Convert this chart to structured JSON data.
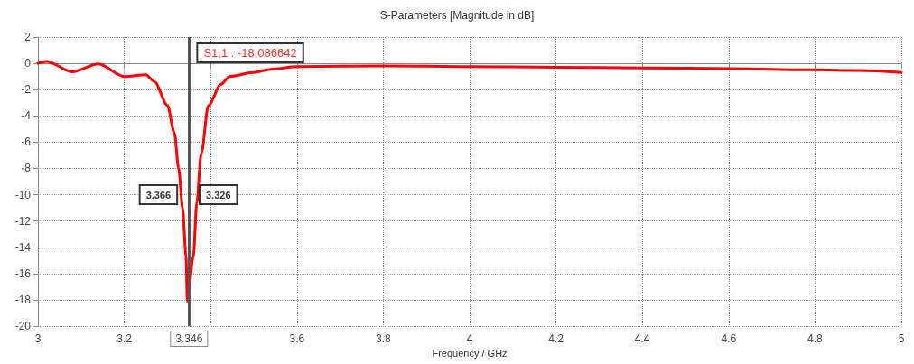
{
  "chart_data": {
    "type": "line",
    "title": "S-Parameters [Magnitude in dB]",
    "xlabel": "Frequency / GHz",
    "x": [
      3.0,
      3.02,
      3.08,
      3.14,
      3.2,
      3.25,
      3.27,
      3.3,
      3.316,
      3.326,
      3.335,
      3.343,
      3.346,
      3.36,
      3.368,
      3.378,
      3.395,
      3.424,
      3.444,
      3.498,
      3.54,
      3.6,
      3.8,
      4.0,
      4.2,
      4.4,
      4.6,
      4.8,
      4.9,
      5.0
    ],
    "series": [
      {
        "color": "#ff0000",
        "values": [
          0,
          0.15,
          -0.65,
          -0.05,
          -1.0,
          -0.87,
          -1.4,
          -3.2,
          -5.3,
          -8.0,
          -11.0,
          -14.7,
          -18.09,
          -14.7,
          -10.6,
          -6.9,
          -3.2,
          -1.6,
          -1.0,
          -0.7,
          -0.45,
          -0.25,
          -0.2,
          -0.25,
          -0.3,
          -0.35,
          -0.4,
          -0.5,
          -0.55,
          -0.7
        ]
      }
    ],
    "xlim": [
      3,
      5
    ],
    "xticks": [
      3,
      3.2,
      {
        "value": 3.4,
        "label": null
      },
      3.6,
      3.8,
      4,
      4.2,
      4.4,
      4.6,
      4.8,
      5
    ],
    "ylim": [
      -20,
      2
    ],
    "yticks": [
      -20,
      -18,
      -16,
      -14,
      -12,
      -10,
      -8,
      -6,
      -4,
      -2,
      0,
      2
    ],
    "grid": true,
    "marker": "none",
    "line_style": "solid",
    "ref_lines": [
      {
        "axis": "x",
        "value": 3.346,
        "label": "3.346",
        "color": "#555555"
      }
    ],
    "annotations": [
      "S1,1 : -18.086642",
      {
        "text": "3.366",
        "x": 3.333,
        "y": -10
      },
      {
        "text": "3.326",
        "x": 3.364,
        "y": -10
      }
    ]
  }
}
